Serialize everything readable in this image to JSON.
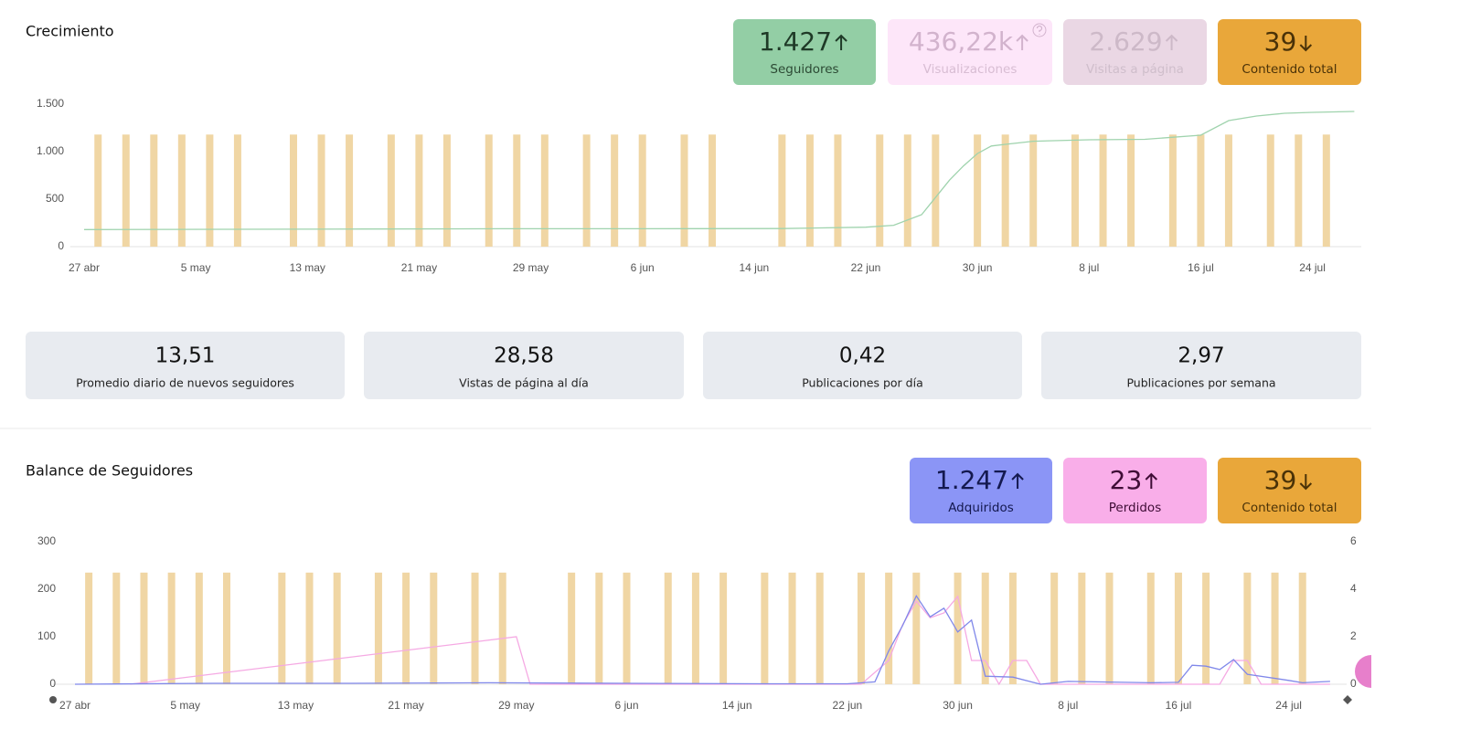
{
  "chart_data": [
    {
      "type": "combo",
      "title": "Crecimiento",
      "xlim": [
        -1,
        91.5
      ],
      "xticks": [
        {
          "value": 0,
          "label": "27 abr"
        },
        {
          "value": 8,
          "label": "5 may"
        },
        {
          "value": 16,
          "label": "13 may"
        },
        {
          "value": 24,
          "label": "21 may"
        },
        {
          "value": 32,
          "label": "29 may"
        },
        {
          "value": 40,
          "label": "6 jun"
        },
        {
          "value": 48,
          "label": "14 jun"
        },
        {
          "value": 56,
          "label": "22 jun"
        },
        {
          "value": 64,
          "label": "30 jun"
        },
        {
          "value": 72,
          "label": "8 jul"
        },
        {
          "value": 80,
          "label": "16 jul"
        },
        {
          "value": 88,
          "label": "24 jul"
        }
      ],
      "ylim": [
        0,
        1500
      ],
      "yticks": [
        0,
        500,
        {
          "value": 1000,
          "label": "1.000"
        },
        {
          "value": 1500,
          "label": "1.500"
        }
      ],
      "grid": false,
      "series": [
        {
          "type": "bar",
          "color": "#efd49f",
          "x": [
            1,
            3,
            5,
            7,
            9,
            11,
            15,
            17,
            19,
            22,
            24,
            26,
            29,
            31,
            33,
            36,
            38,
            40,
            43,
            45,
            50,
            52,
            54,
            57,
            59,
            61,
            64,
            66,
            68,
            71,
            73,
            75,
            78,
            80,
            82,
            85,
            87,
            89
          ],
          "values": [
            1180,
            1180,
            1180,
            1180,
            1180,
            1180,
            1180,
            1180,
            1180,
            1180,
            1180,
            1180,
            1180,
            1180,
            1180,
            1180,
            1180,
            1180,
            1180,
            1180,
            1180,
            1180,
            1180,
            1180,
            1180,
            1180,
            1180,
            1180,
            1180,
            1180,
            1180,
            1180,
            1180,
            1180,
            1180,
            1180,
            1180,
            1180
          ]
        },
        {
          "type": "line",
          "color": "#9fd3ad",
          "x": [
            0,
            10,
            20,
            30,
            40,
            50,
            56,
            58,
            60,
            62,
            63,
            64,
            65,
            66,
            68,
            72,
            76,
            80,
            82,
            84,
            86,
            88,
            91
          ],
          "values": [
            180,
            183,
            186,
            188,
            188,
            190,
            205,
            225,
            337,
            700,
            850,
            980,
            1060,
            1077,
            1110,
            1125,
            1130,
            1173,
            1327,
            1375,
            1404,
            1413,
            1423
          ]
        }
      ]
    },
    {
      "type": "combo",
      "title": "Balance de Seguidores",
      "xlim": [
        -1.6,
        92.2
      ],
      "xticks": [
        {
          "value": 0,
          "label": "27 abr"
        },
        {
          "value": 8,
          "label": "5 may"
        },
        {
          "value": 16,
          "label": "13 may"
        },
        {
          "value": 24,
          "label": "21 may"
        },
        {
          "value": 32,
          "label": "29 may"
        },
        {
          "value": 40,
          "label": "6 jun"
        },
        {
          "value": 48,
          "label": "14 jun"
        },
        {
          "value": 56,
          "label": "22 jun"
        },
        {
          "value": 64,
          "label": "30 jun"
        },
        {
          "value": 72,
          "label": "8 jul"
        },
        {
          "value": 80,
          "label": "16 jul"
        },
        {
          "value": 88,
          "label": "24 jul"
        }
      ],
      "ylim": [
        0,
        300
      ],
      "yticks": [
        0,
        100,
        200,
        300
      ],
      "y2lim": [
        0,
        6
      ],
      "y2ticks": [
        0,
        2,
        4,
        6
      ],
      "grid": false,
      "series": [
        {
          "type": "bar",
          "color": "#efd49f",
          "axis": "y2",
          "x": [
            1,
            3,
            5,
            7,
            9,
            11,
            15,
            17,
            19,
            22,
            24,
            26,
            29,
            31,
            36,
            38,
            40,
            43,
            45,
            47,
            50,
            52,
            54,
            57,
            59,
            61,
            64,
            66,
            68,
            71,
            73,
            75,
            78,
            80,
            82,
            85,
            87,
            89
          ],
          "values": [
            4.7,
            4.7,
            4.7,
            4.7,
            4.7,
            4.7,
            4.7,
            4.7,
            4.7,
            4.7,
            4.7,
            4.7,
            4.7,
            4.7,
            4.7,
            4.7,
            4.7,
            4.7,
            4.7,
            4.7,
            4.7,
            4.7,
            4.7,
            4.7,
            4.7,
            4.7,
            4.7,
            4.7,
            4.7,
            4.7,
            4.7,
            4.7,
            4.7,
            4.7,
            4.7,
            4.7,
            4.7,
            4.7
          ]
        },
        {
          "type": "line",
          "color": "#f5a9e3",
          "axis": "y2",
          "x": [
            4,
            32,
            33,
            57,
            59,
            60,
            61,
            62,
            63,
            64,
            65,
            66,
            67,
            68,
            69,
            70,
            83,
            84,
            85,
            86,
            88,
            91
          ],
          "values": [
            0,
            2,
            0,
            0,
            1,
            2.5,
            3.5,
            2.8,
            3,
            3.7,
            1,
            1,
            0,
            1,
            1,
            0,
            0,
            1,
            1,
            0,
            0,
            0
          ]
        },
        {
          "type": "line",
          "color": "#8088ea",
          "x": [
            0,
            10,
            20,
            30,
            40,
            50,
            56,
            58,
            59,
            60,
            61,
            62,
            63,
            64,
            65,
            66,
            68,
            70,
            72,
            74,
            76,
            78,
            80,
            81,
            82,
            83,
            84,
            85,
            88,
            89,
            91
          ],
          "values": [
            0,
            2,
            2,
            3,
            2,
            1,
            1,
            5,
            70,
            123,
            186,
            142,
            160,
            110,
            135,
            17,
            15,
            0,
            6,
            5,
            4,
            3,
            4,
            40,
            38,
            31,
            52,
            21,
            8,
            3,
            6
          ]
        }
      ]
    }
  ],
  "growth_cards": [
    {
      "value": "1.427",
      "label": "Seguidores",
      "trend": "up",
      "bg": "#93cea5",
      "fg": "#1f3a27",
      "lg": "#2c4a34"
    },
    {
      "value": "436,22k",
      "label": "Visualizaciones",
      "trend": "up",
      "bg": "#fde6f9",
      "fg": "#d2b3cd",
      "lg": "#d8bdd3",
      "help": true
    },
    {
      "value": "2.629",
      "label": "Visitas a página",
      "trend": "up",
      "bg": "#ead7e4",
      "fg": "#cdb9c8",
      "lg": "#cfbecb"
    },
    {
      "value": "39",
      "label": "Contenido total",
      "trend": "down",
      "bg": "#e9a73a",
      "fg": "#4a3208",
      "lg": "#4a3208"
    }
  ],
  "stats": [
    {
      "value": "13,51",
      "label": "Promedio diario de nuevos seguidores"
    },
    {
      "value": "28,58",
      "label": "Vistas de página al día"
    },
    {
      "value": "0,42",
      "label": "Publicaciones por día"
    },
    {
      "value": "2,97",
      "label": "Publicaciones por semana"
    }
  ],
  "balance_cards": [
    {
      "value": "1.247",
      "label": "Adquiridos",
      "trend": "up",
      "bg": "#8b95f6",
      "fg": "#14194f",
      "lg": "#14194f"
    },
    {
      "value": "23",
      "label": "Perdidos",
      "trend": "up",
      "bg": "#f9aee9",
      "fg": "#3f0d36",
      "lg": "#3f0d36"
    },
    {
      "value": "39",
      "label": "Contenido total",
      "trend": "down",
      "bg": "#e9a73a",
      "fg": "#4a3208",
      "lg": "#4a3208"
    }
  ]
}
